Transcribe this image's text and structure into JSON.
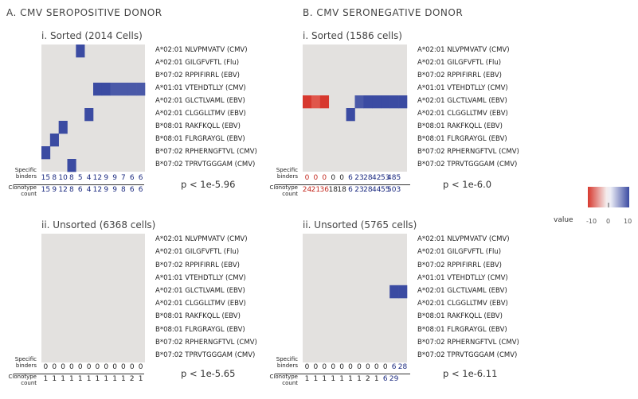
{
  "colors": {
    "background": "#e3e1df",
    "positive": "#3b4ba2",
    "positive_mid": "#4a59a8",
    "negative": "#d7382e",
    "negative_light": "#e0564b",
    "number_blue": "#1b2a80",
    "number_red": "#c42a20",
    "number_black": "#222222"
  },
  "sections": {
    "A": {
      "title": "A. CMV SEROPOSITIVE DONOR"
    },
    "B": {
      "title": "B. CMV SERONEGATIVE DONOR"
    }
  },
  "row_labels": {
    "specific_binders": "Specific binders",
    "clonotype_count": "Clonotype count"
  },
  "legend": {
    "label": "value",
    "min": "-10",
    "mid": "0",
    "max": "10"
  },
  "epitopes": [
    "A*02:01 NLVPMVATV (CMV)",
    "A*02:01 GILGFVFTL (Flu)",
    "B*07:02 RPPIFIRRL (EBV)",
    "A*01:01 VTEHDTLLY (CMV)",
    "A*02:01 GLCTLVAML (EBV)",
    "A*02:01 CLGGLLTMV (EBV)",
    "B*08:01 RAKFKQLL (EBV)",
    "B*08:01 FLRGRAYGL (EBV)",
    "B*07:02 RPHERNGFTVL (CMV)",
    "B*07:02 TPRVTGGGAM (CMV)"
  ],
  "chart_data": [
    {
      "type": "heatmap",
      "title": "i. Sorted (2014 Cells)",
      "rows": 10,
      "cols": 12,
      "cells": [
        [
          0,
          4,
          10
        ],
        [
          3,
          6,
          10
        ],
        [
          3,
          7,
          10
        ],
        [
          3,
          8,
          9
        ],
        [
          3,
          9,
          9
        ],
        [
          3,
          10,
          9
        ],
        [
          3,
          11,
          9
        ],
        [
          5,
          5,
          10
        ],
        [
          6,
          2,
          10
        ],
        [
          7,
          1,
          10
        ],
        [
          8,
          0,
          10
        ],
        [
          9,
          3,
          10
        ]
      ],
      "specific_binders": [
        "15",
        "8",
        "10",
        "8",
        "5",
        "4",
        "12",
        "9",
        "9",
        "7",
        "6",
        "6"
      ],
      "binders_colors": [
        "b",
        "b",
        "b",
        "b",
        "b",
        "b",
        "b",
        "b",
        "b",
        "b",
        "b",
        "b"
      ],
      "clonotype_count": [
        "15",
        "9",
        "12",
        "8",
        "6",
        "4",
        "12",
        "9",
        "9",
        "8",
        "6",
        "6"
      ],
      "count_colors": [
        "b",
        "b",
        "b",
        "b",
        "b",
        "b",
        "b",
        "b",
        "b",
        "b",
        "b",
        "b"
      ],
      "pvalue": "p < 1e-5.96"
    },
    {
      "type": "heatmap",
      "title": "i. Sorted (1586 cells)",
      "rows": 10,
      "cols": 12,
      "cells": [
        [
          4,
          0,
          -9
        ],
        [
          4,
          1,
          -8
        ],
        [
          4,
          2,
          -9
        ],
        [
          4,
          6,
          8
        ],
        [
          4,
          7,
          10
        ],
        [
          4,
          8,
          10
        ],
        [
          4,
          9,
          10
        ],
        [
          4,
          10,
          10
        ],
        [
          4,
          11,
          10
        ],
        [
          5,
          5,
          10
        ]
      ],
      "specific_binders": [
        "0",
        "0",
        "0",
        "0",
        "0",
        "6",
        "23",
        "28",
        "42",
        "53",
        "485",
        ""
      ],
      "binders_colors": [
        "r",
        "r",
        "r",
        "k",
        "k",
        "b",
        "b",
        "b",
        "b",
        "b",
        "b",
        "b"
      ],
      "clonotype_count": [
        "24",
        "21",
        "36",
        "18",
        "18",
        "6",
        "23",
        "28",
        "44",
        "55",
        "503",
        ""
      ],
      "count_colors": [
        "r",
        "r",
        "r",
        "k",
        "k",
        "b",
        "b",
        "b",
        "b",
        "b",
        "b",
        "b"
      ],
      "pvalue": "p < 1e-6.0"
    },
    {
      "type": "heatmap",
      "title": "ii. Unsorted (6368 cells)",
      "rows": 10,
      "cols": 12,
      "cells": [],
      "specific_binders": [
        "0",
        "0",
        "0",
        "0",
        "0",
        "0",
        "0",
        "0",
        "0",
        "0",
        "0",
        "0"
      ],
      "binders_colors": [
        "k",
        "k",
        "k",
        "k",
        "k",
        "k",
        "k",
        "k",
        "k",
        "k",
        "k",
        "k"
      ],
      "clonotype_count": [
        "1",
        "1",
        "1",
        "1",
        "1",
        "1",
        "1",
        "1",
        "1",
        "1",
        "2",
        "1"
      ],
      "count_colors": [
        "k",
        "k",
        "k",
        "k",
        "k",
        "k",
        "k",
        "k",
        "k",
        "k",
        "k",
        "k"
      ],
      "pvalue": "p < 1e-5.65"
    },
    {
      "type": "heatmap",
      "title": "ii. Unsorted (5765 cells)",
      "rows": 10,
      "cols": 12,
      "cells": [
        [
          4,
          10,
          10
        ],
        [
          4,
          11,
          10
        ]
      ],
      "specific_binders": [
        "0",
        "0",
        "0",
        "0",
        "0",
        "0",
        "0",
        "0",
        "0",
        "0",
        "6",
        "28"
      ],
      "binders_colors": [
        "k",
        "k",
        "k",
        "k",
        "k",
        "k",
        "k",
        "k",
        "k",
        "k",
        "b",
        "b"
      ],
      "clonotype_count": [
        "1",
        "1",
        "1",
        "1",
        "1",
        "1",
        "1",
        "2",
        "1",
        "6",
        "29",
        ""
      ],
      "count_colors": [
        "k",
        "k",
        "k",
        "k",
        "k",
        "k",
        "k",
        "k",
        "k",
        "b",
        "b",
        "b"
      ],
      "pvalue": "p < 1e-6.11"
    }
  ]
}
